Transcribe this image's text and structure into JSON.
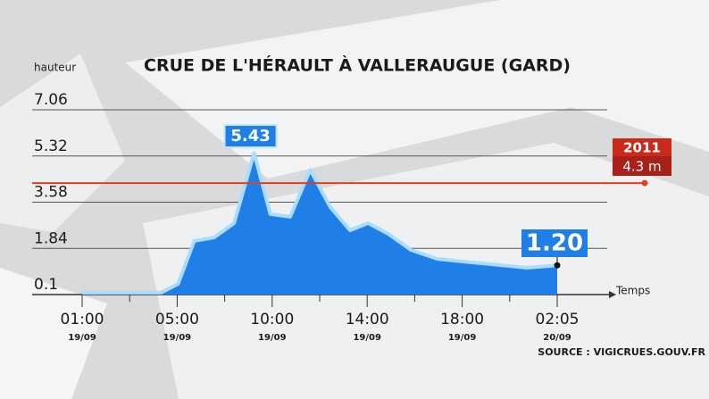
{
  "chart_data": {
    "type": "area",
    "title": "CRUE DE L'HÉRAULT À VALLERAUGUE (GARD)",
    "y_label": "hauteur",
    "x_label": "Temps",
    "source": "SOURCE : VIGICRUES.GOUV.FR",
    "ylim": [
      0.1,
      7.06
    ],
    "yticks": [
      0.1,
      1.84,
      3.58,
      5.32,
      7.06
    ],
    "xlim": [
      0,
      5
    ],
    "xticks": [
      {
        "value": 0,
        "label": "01:00"
      },
      {
        "value": 1,
        "label": "05:00"
      },
      {
        "value": 2,
        "label": "10:00"
      },
      {
        "value": 3,
        "label": "14:00"
      },
      {
        "value": 4,
        "label": "18:00"
      },
      {
        "value": 5,
        "label": "02:05"
      }
    ],
    "xtick_dates": [
      "19/09",
      "19/09",
      "19/09",
      "19/09",
      "19/09",
      "20/09"
    ],
    "grid": true,
    "series": [
      {
        "color": "#1f7fe6",
        "x": [
          0,
          0.83,
          1.01,
          1.18,
          1.39,
          1.6,
          1.81,
          1.98,
          2.19,
          2.4,
          2.61,
          2.82,
          3.01,
          3.22,
          3.46,
          3.74,
          4.02,
          4.4,
          4.68,
          5
        ],
        "values": [
          0.17,
          0.17,
          0.5,
          2.12,
          2.25,
          2.79,
          5.43,
          3.13,
          3.03,
          4.8,
          3.4,
          2.52,
          2.79,
          2.39,
          1.78,
          1.44,
          1.34,
          1.21,
          1.11,
          1.2
        ]
      }
    ],
    "annotations": [
      {
        "x": 1.81,
        "value": 5.43,
        "label": "5.43"
      },
      {
        "x": 5,
        "value": 1.2,
        "label": "1.20"
      }
    ],
    "reference_line": {
      "value": 4.3,
      "label": "2011",
      "value_label": "4.3 m",
      "color": "#e0401e"
    }
  }
}
